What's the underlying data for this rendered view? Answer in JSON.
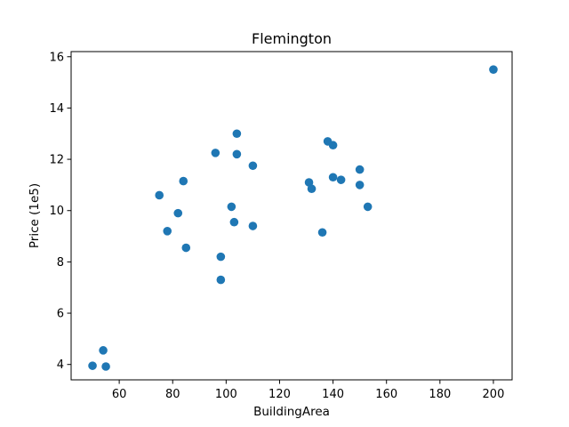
{
  "chart_data": {
    "type": "scatter",
    "title": "Flemington",
    "xlabel": "BuildingArea",
    "ylabel": "Price (1e5)",
    "xlim": [
      42,
      207
    ],
    "ylim": [
      3.4,
      16.2
    ],
    "xticks": [
      60,
      80,
      100,
      120,
      140,
      160,
      180,
      200
    ],
    "yticks": [
      4,
      6,
      8,
      10,
      12,
      14,
      16
    ],
    "grid": false,
    "legend": false,
    "marker_color": "#1f77b4",
    "series": [
      {
        "points": [
          {
            "x": 50,
            "y": 3.95
          },
          {
            "x": 54,
            "y": 4.55
          },
          {
            "x": 55,
            "y": 3.92
          },
          {
            "x": 75,
            "y": 10.6
          },
          {
            "x": 78,
            "y": 9.2
          },
          {
            "x": 82,
            "y": 9.9
          },
          {
            "x": 84,
            "y": 11.15
          },
          {
            "x": 85,
            "y": 8.55
          },
          {
            "x": 96,
            "y": 12.25
          },
          {
            "x": 98,
            "y": 8.2
          },
          {
            "x": 98,
            "y": 7.3
          },
          {
            "x": 102,
            "y": 10.15
          },
          {
            "x": 103,
            "y": 9.55
          },
          {
            "x": 104,
            "y": 13.0
          },
          {
            "x": 104,
            "y": 12.2
          },
          {
            "x": 110,
            "y": 11.75
          },
          {
            "x": 110,
            "y": 9.4
          },
          {
            "x": 131,
            "y": 11.1
          },
          {
            "x": 132,
            "y": 10.85
          },
          {
            "x": 136,
            "y": 9.15
          },
          {
            "x": 138,
            "y": 12.7
          },
          {
            "x": 140,
            "y": 12.55
          },
          {
            "x": 140,
            "y": 11.3
          },
          {
            "x": 143,
            "y": 11.2
          },
          {
            "x": 150,
            "y": 11.6
          },
          {
            "x": 150,
            "y": 11.0
          },
          {
            "x": 153,
            "y": 10.15
          },
          {
            "x": 200,
            "y": 15.5
          }
        ]
      }
    ]
  }
}
